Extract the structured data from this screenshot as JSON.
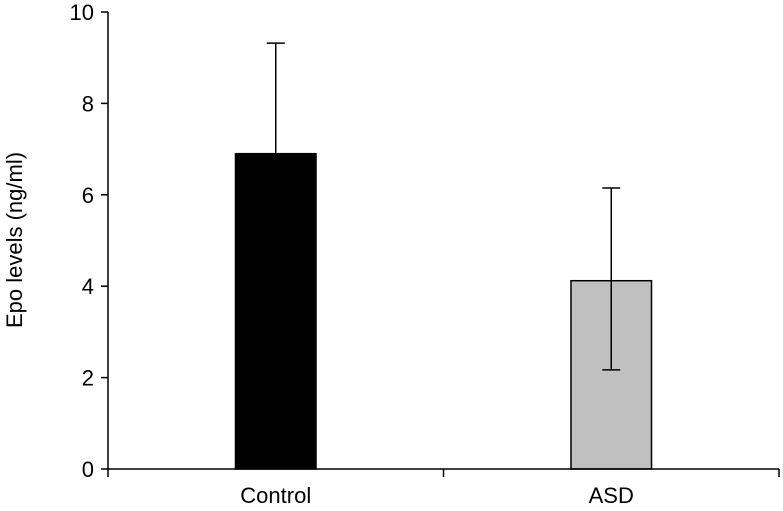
{
  "chart_data": {
    "type": "bar",
    "categories": [
      "Control",
      "ASD"
    ],
    "values": [
      6.9,
      4.12
    ],
    "error_upper": [
      2.42,
      2.03
    ],
    "error_lower": [
      0,
      1.95
    ],
    "bar_colors": [
      "#000000",
      "#c0c0c0"
    ],
    "ylabel": "Epo levels (ng/ml)",
    "xlabel": "",
    "ylim": [
      0,
      10
    ],
    "yticks": [
      0,
      2,
      4,
      6,
      8,
      10
    ],
    "grid": false,
    "legend": "none"
  }
}
